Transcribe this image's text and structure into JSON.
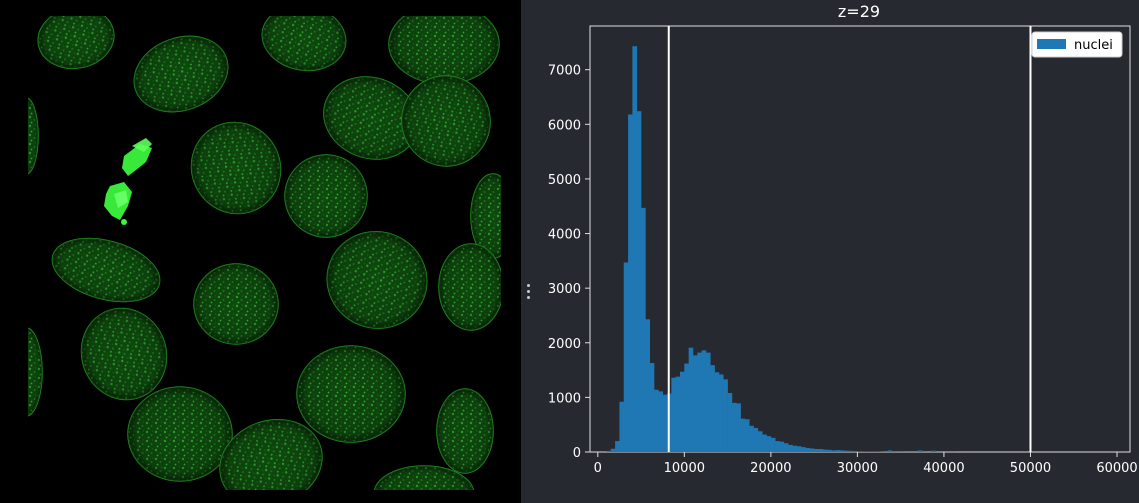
{
  "viewer": {
    "channel": "nuclei",
    "colormap": "green"
  },
  "colors": {
    "panel_bg": "#262930",
    "viewer_bg": "#000000",
    "nuclei_green": "#2ea82e",
    "bright_green": "#3cf53c",
    "bar_color": "#1f77b4",
    "axis_color": "#e0e0e0",
    "limit_line": "#ffffff"
  },
  "chart_data": {
    "type": "bar",
    "title": "z=29",
    "xlabel": "",
    "ylabel": "",
    "xlim": [
      -900,
      61500
    ],
    "ylim": [
      0,
      7800
    ],
    "xticks": [
      0,
      10000,
      20000,
      30000,
      40000,
      50000,
      60000
    ],
    "yticks": [
      0,
      1000,
      2000,
      3000,
      4000,
      5000,
      6000,
      7000
    ],
    "bin_width": 500,
    "bin_start": 1000,
    "series": [
      {
        "name": "nuclei",
        "values": [
          20,
          60,
          200,
          920,
          3470,
          6180,
          7430,
          6240,
          4470,
          2430,
          1630,
          1140,
          1110,
          1050,
          1070,
          1360,
          1380,
          1470,
          1620,
          1910,
          1770,
          1820,
          1860,
          1820,
          1590,
          1460,
          1420,
          1330,
          1080,
          900,
          890,
          610,
          600,
          480,
          440,
          380,
          320,
          290,
          260,
          200,
          190,
          160,
          130,
          115,
          105,
          90,
          75,
          65,
          55,
          55,
          45,
          40,
          30,
          35,
          30,
          25,
          22,
          18,
          14,
          12,
          10,
          8,
          8,
          6,
          4,
          30,
          4,
          3,
          3,
          2,
          2,
          2,
          30,
          2,
          1,
          25,
          1,
          1,
          1,
          1,
          1
        ]
      }
    ],
    "vlines": [
      8200,
      50000
    ],
    "legend": {
      "position": "top-right",
      "entries": [
        "nuclei"
      ]
    },
    "grid": false
  },
  "splitter": {
    "handle_icon": "vertical-ellipsis-icon"
  }
}
